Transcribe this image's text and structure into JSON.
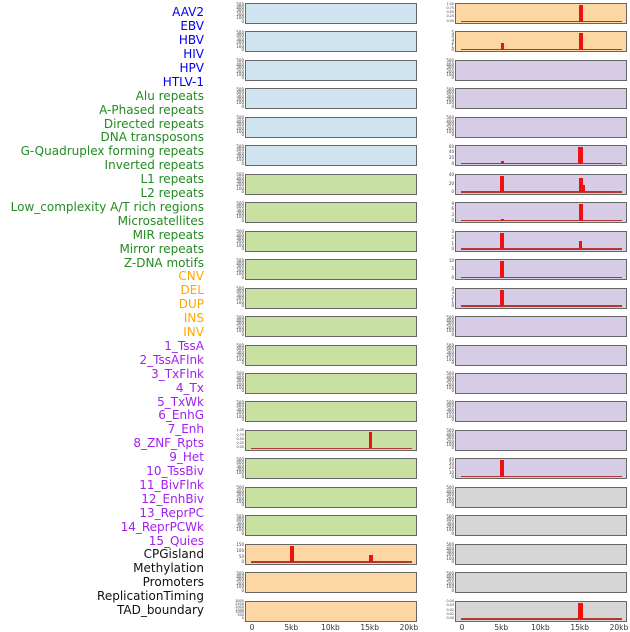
{
  "chart_data": {
    "type": "area",
    "title": "",
    "x_axis": {
      "tick_labels": [
        "0",
        "5kb",
        "10kb",
        "15kb",
        "20kb"
      ],
      "tick_positions_kb": [
        0,
        5,
        10,
        15,
        20
      ],
      "range_kb": [
        0,
        20
      ]
    },
    "layout": {
      "columns": 2,
      "rows_per_column": 22,
      "order": "column-major"
    },
    "tracks": [
      {
        "name": "AAV2",
        "group": "virus",
        "bg": "blue",
        "yticks": [
          "500",
          "400",
          "300",
          "200",
          "100",
          "0"
        ],
        "baseline": false,
        "spikes": []
      },
      {
        "name": "EBV",
        "group": "virus",
        "bg": "blue",
        "yticks": [
          "500",
          "400",
          "300",
          "200",
          "100",
          "0"
        ],
        "baseline": false,
        "spikes": []
      },
      {
        "name": "HBV",
        "group": "virus",
        "bg": "blue",
        "yticks": [
          "500",
          "400",
          "300",
          "200",
          "100",
          "0"
        ],
        "baseline": false,
        "spikes": []
      },
      {
        "name": "HIV",
        "group": "virus",
        "bg": "blue",
        "yticks": [
          "500",
          "400",
          "300",
          "200",
          "100",
          "0"
        ],
        "baseline": false,
        "spikes": []
      },
      {
        "name": "HPV",
        "group": "virus",
        "bg": "blue",
        "yticks": [
          "500",
          "400",
          "300",
          "200",
          "100",
          "0"
        ],
        "baseline": false,
        "spikes": []
      },
      {
        "name": "HTLV-1",
        "group": "virus",
        "bg": "blue",
        "yticks": [
          "500",
          "400",
          "300",
          "200",
          "100",
          "0"
        ],
        "baseline": false,
        "spikes": []
      },
      {
        "name": "Alu repeats",
        "group": "repeat",
        "bg": "green",
        "yticks": [
          "500",
          "400",
          "300",
          "200",
          "100",
          "0"
        ],
        "baseline": false,
        "spikes": []
      },
      {
        "name": "A-Phased repeats",
        "group": "repeat",
        "bg": "green",
        "yticks": [
          "500",
          "400",
          "300",
          "200",
          "100",
          "0"
        ],
        "baseline": false,
        "spikes": []
      },
      {
        "name": "Directed repeats",
        "group": "repeat",
        "bg": "green",
        "yticks": [
          "500",
          "400",
          "300",
          "200",
          "100",
          "0"
        ],
        "baseline": false,
        "spikes": []
      },
      {
        "name": "DNA transposons",
        "group": "repeat",
        "bg": "green",
        "yticks": [
          "500",
          "400",
          "300",
          "200",
          "100",
          "0"
        ],
        "baseline": false,
        "spikes": []
      },
      {
        "name": "G-Quadruplex forming repeats",
        "group": "repeat",
        "bg": "green",
        "yticks": [
          "500",
          "400",
          "300",
          "200",
          "100",
          "0"
        ],
        "baseline": false,
        "spikes": []
      },
      {
        "name": "Inverted repeats",
        "group": "repeat",
        "bg": "green",
        "yticks": [
          "500",
          "400",
          "300",
          "200",
          "100",
          "0"
        ],
        "baseline": false,
        "spikes": []
      },
      {
        "name": "L1 repeats",
        "group": "repeat",
        "bg": "green",
        "yticks": [
          "500",
          "400",
          "300",
          "200",
          "100",
          "0"
        ],
        "baseline": false,
        "spikes": []
      },
      {
        "name": "L2 repeats",
        "group": "repeat",
        "bg": "green",
        "yticks": [
          "500",
          "400",
          "300",
          "200",
          "100",
          "0"
        ],
        "baseline": false,
        "spikes": []
      },
      {
        "name": "Low_complexity A/T rich regions",
        "group": "repeat",
        "bg": "green",
        "yticks": [
          "500",
          "400",
          "300",
          "200",
          "100",
          "0"
        ],
        "baseline": false,
        "spikes": []
      },
      {
        "name": "Microsatellites",
        "group": "repeat",
        "bg": "green",
        "yticks": [
          "1.00",
          "0.75",
          "0.50",
          "0.25",
          "0.00"
        ],
        "baseline": true,
        "spikes": [
          {
            "kb": 15,
            "frac": 1.0,
            "w": 3
          }
        ]
      },
      {
        "name": "MIR repeats",
        "group": "repeat",
        "bg": "green",
        "yticks": [
          "500",
          "400",
          "300",
          "200",
          "100",
          "0"
        ],
        "baseline": false,
        "spikes": []
      },
      {
        "name": "Mirror repeats",
        "group": "repeat",
        "bg": "green",
        "yticks": [
          "500",
          "400",
          "300",
          "200",
          "100",
          "0"
        ],
        "baseline": false,
        "spikes": []
      },
      {
        "name": "Z-DNA motifs",
        "group": "repeat",
        "bg": "green",
        "yticks": [
          "500",
          "400",
          "300",
          "200",
          "100",
          "0"
        ],
        "baseline": false,
        "spikes": []
      },
      {
        "name": "CNV",
        "group": "sv",
        "bg": "orange",
        "yticks": [
          "150",
          "100",
          "50",
          "0"
        ],
        "baseline": true,
        "spikes": [
          {
            "kb": 5,
            "frac": 1.0,
            "w": 4
          },
          {
            "kb": 15,
            "frac": 0.42,
            "w": 4
          }
        ]
      },
      {
        "name": "DEL",
        "group": "sv",
        "bg": "orange",
        "yticks": [
          "500",
          "400",
          "300",
          "200",
          "100",
          "0"
        ],
        "baseline": false,
        "spikes": []
      },
      {
        "name": "DUP",
        "group": "sv",
        "bg": "orange",
        "yticks": [
          "3000",
          "2500",
          "2000",
          "1500",
          "1000",
          "500",
          "0"
        ],
        "baseline": false,
        "spikes": []
      },
      {
        "name": "INS",
        "group": "sv",
        "bg": "orange",
        "yticks": [
          "1.00",
          "0.75",
          "0.50",
          "0.25",
          "0.00"
        ],
        "baseline": true,
        "spikes": [
          {
            "kb": 15,
            "frac": 1.0,
            "w": 4
          }
        ]
      },
      {
        "name": "INV",
        "group": "sv",
        "bg": "orange",
        "yticks": [
          "5",
          "4",
          "3",
          "2",
          "1",
          "0"
        ],
        "baseline": true,
        "spikes": [
          {
            "kb": 5,
            "frac": 0.42,
            "w": 3
          },
          {
            "kb": 15,
            "frac": 1.0,
            "w": 4
          }
        ]
      },
      {
        "name": "1_TssA",
        "group": "chromatin",
        "bg": "purple",
        "yticks": [
          "500",
          "400",
          "300",
          "200",
          "100",
          "0"
        ],
        "baseline": false,
        "spikes": []
      },
      {
        "name": "2_TssAFlnk",
        "group": "chromatin",
        "bg": "purple",
        "yticks": [
          "500",
          "400",
          "300",
          "200",
          "100",
          "0"
        ],
        "baseline": false,
        "spikes": []
      },
      {
        "name": "3_TxFlnk",
        "group": "chromatin",
        "bg": "purple",
        "yticks": [
          "500",
          "400",
          "300",
          "200",
          "100",
          "0"
        ],
        "baseline": false,
        "spikes": []
      },
      {
        "name": "4_Tx",
        "group": "chromatin",
        "bg": "purple",
        "yticks": [
          "60",
          "40",
          "20",
          "0"
        ],
        "baseline": true,
        "spikes": [
          {
            "kb": 5,
            "frac": 0.15,
            "w": 3
          },
          {
            "kb": 15,
            "frac": 1.0,
            "w": 4.5
          }
        ]
      },
      {
        "name": "5_TxWk",
        "group": "chromatin",
        "bg": "purple",
        "yticks": [
          "40",
          "20",
          "0"
        ],
        "baseline": true,
        "spikes": [
          {
            "kb": 5,
            "frac": 1.0,
            "w": 4
          },
          {
            "kb": 15,
            "frac": 0.85,
            "w": 4
          },
          {
            "kb": 15.4,
            "frac": 0.42,
            "w": 2
          }
        ]
      },
      {
        "name": "6_EnhG",
        "group": "chromatin",
        "bg": "purple",
        "yticks": [
          "9",
          "6",
          "3",
          "0"
        ],
        "baseline": true,
        "spikes": [
          {
            "kb": 5,
            "frac": 0.13,
            "w": 3
          },
          {
            "kb": 15,
            "frac": 1.0,
            "w": 4
          }
        ]
      },
      {
        "name": "7_Enh",
        "group": "chromatin",
        "bg": "purple",
        "yticks": [
          "3",
          "2",
          "1",
          "0"
        ],
        "baseline": true,
        "spikes": [
          {
            "kb": 5,
            "frac": 1.0,
            "w": 4
          },
          {
            "kb": 15,
            "frac": 0.5,
            "w": 3.5
          }
        ]
      },
      {
        "name": "8_ZNF_Rpts",
        "group": "chromatin",
        "bg": "purple",
        "yticks": [
          "10",
          "5",
          "0"
        ],
        "baseline": true,
        "spikes": [
          {
            "kb": 5,
            "frac": 1.0,
            "w": 4
          }
        ]
      },
      {
        "name": "9_Het",
        "group": "chromatin",
        "bg": "purple",
        "yticks": [
          "4",
          "3",
          "2",
          "1",
          "0"
        ],
        "baseline": true,
        "spikes": [
          {
            "kb": 5,
            "frac": 1.0,
            "w": 4
          }
        ]
      },
      {
        "name": "10_TssBiv",
        "group": "chromatin",
        "bg": "purple",
        "yticks": [
          "500",
          "400",
          "300",
          "200",
          "100",
          "0"
        ],
        "baseline": false,
        "spikes": []
      },
      {
        "name": "11_BivFlnk",
        "group": "chromatin",
        "bg": "purple",
        "yticks": [
          "500",
          "400",
          "300",
          "200",
          "100",
          "0"
        ],
        "baseline": false,
        "spikes": []
      },
      {
        "name": "12_EnhBiv",
        "group": "chromatin",
        "bg": "purple",
        "yticks": [
          "500",
          "400",
          "300",
          "200",
          "100",
          "0"
        ],
        "baseline": false,
        "spikes": []
      },
      {
        "name": "13_ReprPC",
        "group": "chromatin",
        "bg": "purple",
        "yticks": [
          "500",
          "400",
          "300",
          "200",
          "100",
          "0"
        ],
        "baseline": false,
        "spikes": []
      },
      {
        "name": "14_ReprPCWk",
        "group": "chromatin",
        "bg": "purple",
        "yticks": [
          "500",
          "400",
          "300",
          "200",
          "100",
          "0"
        ],
        "baseline": false,
        "spikes": []
      },
      {
        "name": "15_Quies",
        "group": "chromatin",
        "bg": "purple",
        "yticks": [
          "40",
          "30",
          "20",
          "10",
          "0"
        ],
        "baseline": true,
        "spikes": [
          {
            "kb": 5,
            "frac": 1.0,
            "w": 4
          }
        ]
      },
      {
        "name": "CPGisland",
        "group": "feature",
        "bg": "gray",
        "yticks": [
          "500",
          "400",
          "300",
          "200",
          "100",
          "0"
        ],
        "baseline": false,
        "spikes": []
      },
      {
        "name": "Methylation",
        "group": "feature",
        "bg": "gray",
        "yticks": [
          "500",
          "400",
          "300",
          "200",
          "100",
          "0"
        ],
        "baseline": false,
        "spikes": []
      },
      {
        "name": "Promoters",
        "group": "feature",
        "bg": "gray",
        "yticks": [
          "500",
          "400",
          "300",
          "200",
          "100",
          "0"
        ],
        "baseline": false,
        "spikes": []
      },
      {
        "name": "ReplicationTiming",
        "group": "feature",
        "bg": "gray",
        "yticks": [
          "500",
          "400",
          "300",
          "200",
          "100",
          "0"
        ],
        "baseline": false,
        "spikes": []
      },
      {
        "name": "TAD_boundary",
        "group": "feature",
        "bg": "gray",
        "yticks": [
          "0.04",
          "0.03",
          "0.02",
          "0.01",
          "0.00"
        ],
        "baseline": true,
        "spikes": [
          {
            "kb": 15,
            "frac": 1.0,
            "w": 4.5
          }
        ]
      }
    ]
  },
  "colors": {
    "panel_bg": {
      "blue": "#cfe4ee",
      "green": "#c8e0a2",
      "orange": "#fcd7a4",
      "purple": "#d7cce6",
      "gray": "#d6d6d6"
    },
    "label_color": {
      "virus": "#0000ee",
      "repeat": "#228b22",
      "sv": "#ffa500",
      "chromatin": "#a020f0",
      "feature": "#111111"
    },
    "spike": "#ee1111",
    "baseline": "#b03a30",
    "panel_border": "#666666",
    "tick_text": "#3a3a3a"
  }
}
